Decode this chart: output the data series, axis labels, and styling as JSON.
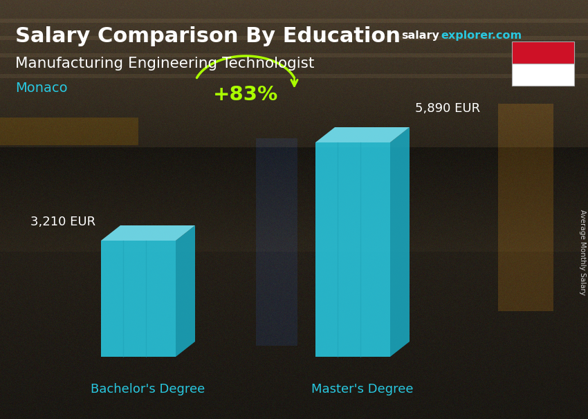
{
  "title_main": "Salary Comparison By Education",
  "title_sub": "Manufacturing Engineering Technologist",
  "country": "Monaco",
  "categories": [
    "Bachelor's Degree",
    "Master's Degree"
  ],
  "values": [
    3210,
    5890
  ],
  "value_labels": [
    "3,210 EUR",
    "5,890 EUR"
  ],
  "bar_color_face": "#29c8e0",
  "bar_color_top": "#72dff0",
  "bar_color_side": "#1aa8c0",
  "pct_label": "+83%",
  "pct_color": "#aaff00",
  "site_salary_color": "#ffffff",
  "site_explorer_color": "#29c8e0",
  "country_color": "#29c8e0",
  "xlabel_color": "#29c8e0",
  "rotated_label": "Average Monthly Salary",
  "rotated_label_color": "#cccccc",
  "flag_red": "#CE1126",
  "flag_white": "#FFFFFF",
  "bg_dark": "#1c1c1c"
}
